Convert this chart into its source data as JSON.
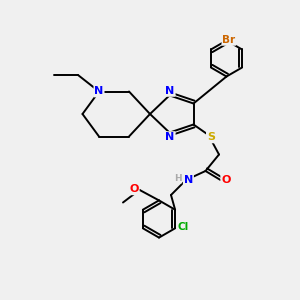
{
  "background_color": "#f0f0f0",
  "bond_color": "#000000",
  "atom_colors": {
    "N": "#0000ff",
    "S": "#ccaa00",
    "O": "#ff0000",
    "Br": "#cc6600",
    "Cl": "#00aa00",
    "H": "#aaaaaa"
  },
  "bond_width": 1.4,
  "figsize": [
    3.0,
    3.0
  ],
  "dpi": 100
}
